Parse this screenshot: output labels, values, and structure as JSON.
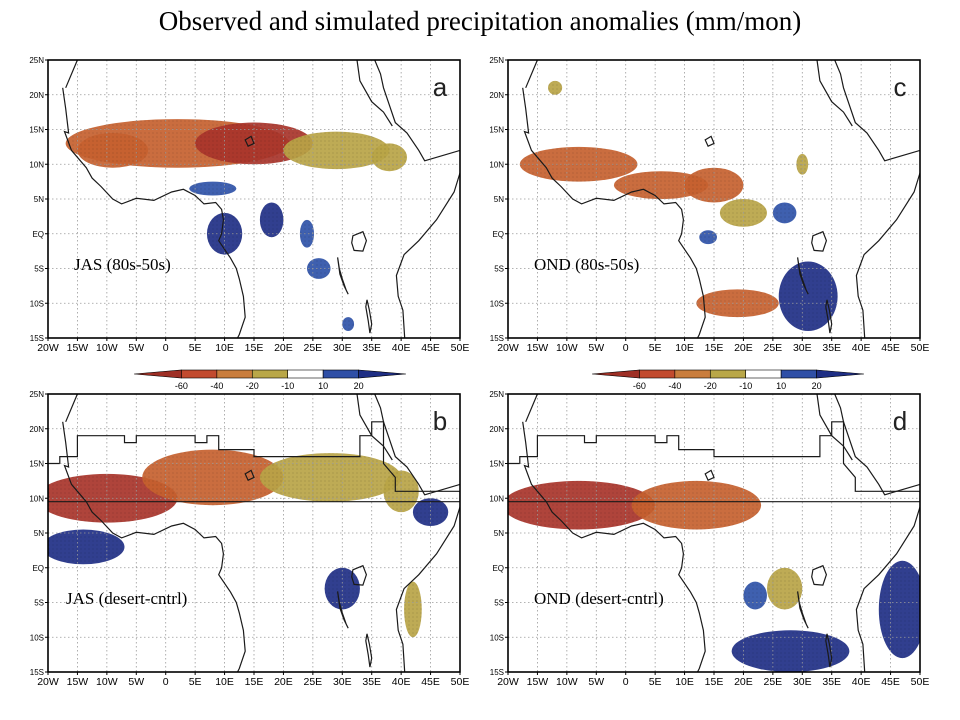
{
  "title": "Observed and simulated precipitation anomalies (mm/mon)",
  "colors": {
    "dry_strong": "#a8342a",
    "dry_mid": "#c6612f",
    "dry_weak": "#b8a446",
    "wet_weak": "#2f52a8",
    "wet_strong": "#1f2f86",
    "coast": "#1a1a1a",
    "grid": "#9a9a9a"
  },
  "colorbar": {
    "ticks": [
      "-60",
      "-40",
      "-20",
      "-10",
      "10",
      "20"
    ],
    "colors": [
      "#9e2f25",
      "#c24a2e",
      "#c97d3d",
      "#b9a748",
      "#ffffff",
      "#2f4fa6",
      "#1e2e84"
    ]
  },
  "chart_data": [
    {
      "type": "heatmap",
      "id": "a",
      "panel_letter": "a",
      "label": "JAS (80s-50s)",
      "xlim": [
        -20,
        50
      ],
      "ylim": [
        -15,
        25
      ],
      "x_ticks": [
        "20W",
        "15W",
        "10W",
        "5W",
        "0",
        "5E",
        "10E",
        "15E",
        "20E",
        "25E",
        "30E",
        "35E",
        "40E",
        "45E",
        "50E"
      ],
      "y_ticks": [
        "25N",
        "20N",
        "15N",
        "10N",
        "5N",
        "EQ",
        "5S",
        "10S",
        "15S"
      ],
      "anomaly_blobs": [
        {
          "lon": 2,
          "lat": 13,
          "rlon": 19,
          "rlat": 3.5,
          "value": -40
        },
        {
          "lon": 15,
          "lat": 13,
          "rlon": 10,
          "rlat": 3,
          "value": -60
        },
        {
          "lon": 29,
          "lat": 12,
          "rlon": 9,
          "rlat": 2.7,
          "value": -30
        },
        {
          "lon": -9,
          "lat": 12,
          "rlon": 6,
          "rlat": 2.5,
          "value": -40
        },
        {
          "lon": 38,
          "lat": 11,
          "rlon": 3,
          "rlat": 2,
          "value": -15
        },
        {
          "lon": 8,
          "lat": 6.5,
          "rlon": 4,
          "rlat": 1,
          "value": 15
        },
        {
          "lon": 10,
          "lat": 0,
          "rlon": 3,
          "rlat": 3,
          "value": 20
        },
        {
          "lon": 18,
          "lat": 2,
          "rlon": 2,
          "rlat": 2.5,
          "value": 20
        },
        {
          "lon": 26,
          "lat": -5,
          "rlon": 2,
          "rlat": 1.5,
          "value": 15
        },
        {
          "lon": 31,
          "lat": -13,
          "rlon": 1,
          "rlat": 1,
          "value": 15
        },
        {
          "lon": 24,
          "lat": 0,
          "rlon": 1.2,
          "rlat": 2,
          "value": 15
        }
      ]
    },
    {
      "type": "heatmap",
      "id": "c",
      "panel_letter": "c",
      "label": "OND (80s-50s)",
      "xlim": [
        -20,
        50
      ],
      "ylim": [
        -15,
        25
      ],
      "x_ticks": [
        "20W",
        "15W",
        "10W",
        "5W",
        "0",
        "5E",
        "10E",
        "15E",
        "20E",
        "25E",
        "30E",
        "35E",
        "40E",
        "45E",
        "50E"
      ],
      "y_ticks": [
        "25N",
        "20N",
        "15N",
        "10N",
        "5N",
        "EQ",
        "5S",
        "10S",
        "15S"
      ],
      "anomaly_blobs": [
        {
          "lon": -8,
          "lat": 10,
          "rlon": 10,
          "rlat": 2.5,
          "value": -40
        },
        {
          "lon": 6,
          "lat": 7,
          "rlon": 8,
          "rlat": 2,
          "value": -40
        },
        {
          "lon": 15,
          "lat": 7,
          "rlon": 5,
          "rlat": 2.5,
          "value": -40
        },
        {
          "lon": 20,
          "lat": 3,
          "rlon": 4,
          "rlat": 2,
          "value": -30
        },
        {
          "lon": 19,
          "lat": -10,
          "rlon": 7,
          "rlat": 2,
          "value": -40
        },
        {
          "lon": 30,
          "lat": 10,
          "rlon": 1,
          "rlat": 1.5,
          "value": -15
        },
        {
          "lon": -12,
          "lat": 21,
          "rlon": 1.2,
          "rlat": 1,
          "value": -15
        },
        {
          "lon": 31,
          "lat": -9,
          "rlon": 5,
          "rlat": 5,
          "value": 20
        },
        {
          "lon": 14,
          "lat": -0.5,
          "rlon": 1.5,
          "rlat": 1,
          "value": 15
        },
        {
          "lon": 27,
          "lat": 3,
          "rlon": 2,
          "rlat": 1.5,
          "value": 15
        }
      ]
    },
    {
      "type": "heatmap",
      "id": "b",
      "panel_letter": "b",
      "label": "JAS (desert-cntrl)",
      "xlim": [
        -20,
        50
      ],
      "ylim": [
        -15,
        25
      ],
      "x_ticks": [
        "20W",
        "15W",
        "10W",
        "5W",
        "0",
        "5E",
        "10E",
        "15E",
        "20E",
        "25E",
        "30E",
        "35E",
        "40E",
        "45E",
        "50E"
      ],
      "y_ticks": [
        "25N",
        "20N",
        "15N",
        "10N",
        "5N",
        "EQ",
        "5S",
        "10S",
        "15S"
      ],
      "anomaly_blobs": [
        {
          "lon": -10,
          "lat": 10,
          "rlon": 12,
          "rlat": 3.5,
          "value": -60
        },
        {
          "lon": 8,
          "lat": 13,
          "rlon": 12,
          "rlat": 4,
          "value": -40
        },
        {
          "lon": 28,
          "lat": 13,
          "rlon": 12,
          "rlat": 3.5,
          "value": -30
        },
        {
          "lon": 40,
          "lat": 11,
          "rlon": 3,
          "rlat": 3,
          "value": -20
        },
        {
          "lon": 42,
          "lat": -6,
          "rlon": 1.5,
          "rlat": 4,
          "value": -15
        },
        {
          "lon": -14,
          "lat": 3,
          "rlon": 7,
          "rlat": 2.5,
          "value": 20
        },
        {
          "lon": 30,
          "lat": -3,
          "rlon": 3,
          "rlat": 3,
          "value": 20
        },
        {
          "lon": 45,
          "lat": 8,
          "rlon": 3,
          "rlat": 2,
          "value": 20
        }
      ]
    },
    {
      "type": "heatmap",
      "id": "d",
      "panel_letter": "d",
      "label": "OND (desert-cntrl)",
      "xlim": [
        -20,
        50
      ],
      "ylim": [
        -15,
        25
      ],
      "x_ticks": [
        "20W",
        "15W",
        "10W",
        "5W",
        "0",
        "5E",
        "10E",
        "15E",
        "20E",
        "25E",
        "30E",
        "35E",
        "40E",
        "45E",
        "50E"
      ],
      "y_ticks": [
        "25N",
        "20N",
        "15N",
        "10N",
        "5N",
        "EQ",
        "5S",
        "10S",
        "15S"
      ],
      "anomaly_blobs": [
        {
          "lon": -8,
          "lat": 9,
          "rlon": 13,
          "rlat": 3.5,
          "value": -60
        },
        {
          "lon": 12,
          "lat": 9,
          "rlon": 11,
          "rlat": 3.5,
          "value": -40
        },
        {
          "lon": 27,
          "lat": -3,
          "rlon": 3,
          "rlat": 3,
          "value": -20
        },
        {
          "lon": 28,
          "lat": -12,
          "rlon": 10,
          "rlat": 3,
          "value": 20
        },
        {
          "lon": 47,
          "lat": -6,
          "rlon": 4,
          "rlat": 7,
          "value": 20
        },
        {
          "lon": 22,
          "lat": -4,
          "rlon": 2,
          "rlat": 2,
          "value": 15
        }
      ]
    }
  ]
}
